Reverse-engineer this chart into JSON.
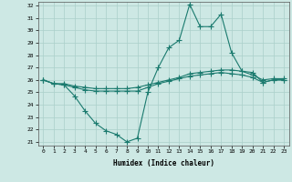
{
  "xlabel": "Humidex (Indice chaleur)",
  "x": [
    0,
    1,
    2,
    3,
    4,
    5,
    6,
    7,
    8,
    9,
    10,
    11,
    12,
    13,
    14,
    15,
    16,
    17,
    18,
    19,
    20,
    21,
    22,
    23
  ],
  "line1": [
    26,
    25.7,
    25.6,
    24.7,
    23.5,
    22.5,
    21.9,
    21.6,
    21.0,
    21.3,
    25.0,
    27.0,
    28.6,
    29.2,
    32.1,
    30.3,
    30.3,
    31.3,
    28.2,
    26.7,
    26.6,
    25.8,
    26.0,
    26.0
  ],
  "line2": [
    26,
    25.7,
    25.6,
    25.4,
    25.2,
    25.1,
    25.1,
    25.1,
    25.1,
    25.1,
    25.4,
    25.7,
    25.9,
    26.1,
    26.3,
    26.4,
    26.5,
    26.6,
    26.5,
    26.4,
    26.2,
    25.8,
    26.0,
    26.0
  ],
  "line3": [
    26,
    25.7,
    25.7,
    25.5,
    25.4,
    25.3,
    25.3,
    25.3,
    25.3,
    25.4,
    25.6,
    25.8,
    26.0,
    26.2,
    26.5,
    26.6,
    26.7,
    26.8,
    26.8,
    26.7,
    26.4,
    26.0,
    26.1,
    26.1
  ],
  "line_color": "#1a7a6e",
  "bg_color": "#cde8e4",
  "grid_color": "#aacfca",
  "ylim": [
    21,
    32
  ],
  "yticks": [
    21,
    22,
    23,
    24,
    25,
    26,
    27,
    28,
    29,
    30,
    31,
    32
  ],
  "xticks": [
    0,
    1,
    2,
    3,
    4,
    5,
    6,
    7,
    8,
    9,
    10,
    11,
    12,
    13,
    14,
    15,
    16,
    17,
    18,
    19,
    20,
    21,
    22,
    23
  ]
}
